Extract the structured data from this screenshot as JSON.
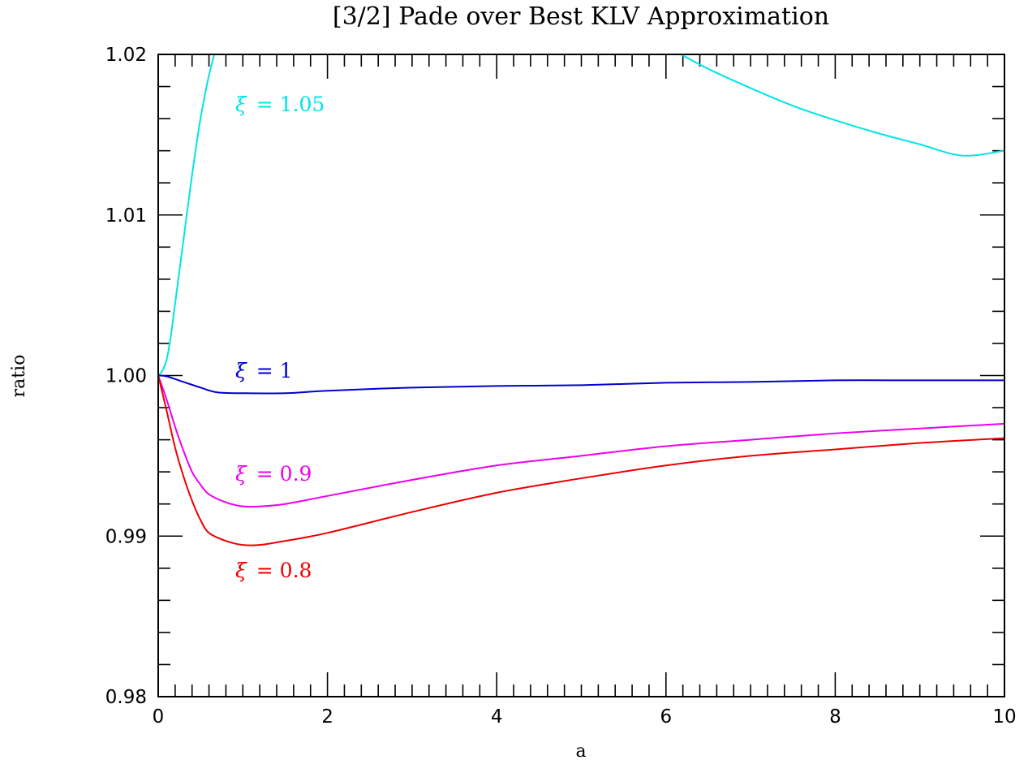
{
  "chart_data": {
    "type": "line",
    "title": "[3/2] Pade over Best KLV Approximation",
    "xlabel": "a",
    "ylabel": "ratio",
    "xlim": [
      0,
      10
    ],
    "ylim": [
      0.98,
      1.02
    ],
    "x_ticks": [
      "0",
      "2",
      "4",
      "6",
      "8",
      "10"
    ],
    "y_ticks": [
      "0.98",
      "0.99",
      "1.01",
      "1.02"
    ],
    "y_tick_1": "1.00",
    "grid": false,
    "series": [
      {
        "label_symbol": "ξ",
        "label_text": "= 1.05",
        "color": "#00e5e5",
        "points": [
          [
            0,
            1.0
          ],
          [
            0.05,
            1.0003
          ],
          [
            0.1,
            1.001
          ],
          [
            0.15,
            1.0025
          ],
          [
            0.2,
            1.0045
          ],
          [
            0.3,
            1.0085
          ],
          [
            0.4,
            1.0125
          ],
          [
            0.5,
            1.016
          ],
          [
            0.6,
            1.0187
          ],
          [
            0.7,
            1.0207
          ],
          [
            6.0,
            1.0205
          ],
          [
            6.5,
            1.0191
          ],
          [
            7.0,
            1.0179
          ],
          [
            7.5,
            1.0168
          ],
          [
            8.0,
            1.0159
          ],
          [
            8.5,
            1.0151
          ],
          [
            9.0,
            1.0144
          ],
          [
            9.5,
            1.0137
          ],
          [
            10.0,
            1.014
          ]
        ]
      },
      {
        "label_symbol": "ξ",
        "label_text": "= 1",
        "color": "#0000cc",
        "points": [
          [
            0,
            1.0
          ],
          [
            0.1,
            0.99995
          ],
          [
            0.3,
            0.9996
          ],
          [
            0.5,
            0.99925
          ],
          [
            0.7,
            0.99895
          ],
          [
            1.0,
            0.9989
          ],
          [
            1.5,
            0.9989
          ],
          [
            2.0,
            0.99905
          ],
          [
            3.0,
            0.99925
          ],
          [
            4.0,
            0.99935
          ],
          [
            5.0,
            0.9994
          ],
          [
            6.0,
            0.99955
          ],
          [
            7.0,
            0.9996
          ],
          [
            8.0,
            0.9997
          ],
          [
            9.0,
            0.9997
          ],
          [
            10.0,
            0.9997
          ]
        ]
      },
      {
        "label_symbol": "ξ",
        "label_text": "= 0.9",
        "color": "#ee00ee",
        "points": [
          [
            0,
            1.0
          ],
          [
            0.1,
            0.9985
          ],
          [
            0.2,
            0.9968
          ],
          [
            0.3,
            0.9953
          ],
          [
            0.4,
            0.994
          ],
          [
            0.5,
            0.9932
          ],
          [
            0.6,
            0.9926
          ],
          [
            0.8,
            0.9921
          ],
          [
            1.0,
            0.99185
          ],
          [
            1.2,
            0.99185
          ],
          [
            1.5,
            0.992
          ],
          [
            2.0,
            0.9925
          ],
          [
            3.0,
            0.9935
          ],
          [
            4.0,
            0.9944
          ],
          [
            5.0,
            0.995
          ],
          [
            6.0,
            0.9956
          ],
          [
            7.0,
            0.996
          ],
          [
            8.0,
            0.9964
          ],
          [
            9.0,
            0.9967
          ],
          [
            10.0,
            0.997
          ]
        ]
      },
      {
        "label_symbol": "ξ",
        "label_text": "= 0.8",
        "color": "#ee0000",
        "points": [
          [
            0,
            1.0
          ],
          [
            0.1,
            0.9978
          ],
          [
            0.2,
            0.9955
          ],
          [
            0.3,
            0.9937
          ],
          [
            0.4,
            0.9922
          ],
          [
            0.5,
            0.991
          ],
          [
            0.6,
            0.9902
          ],
          [
            0.8,
            0.9897
          ],
          [
            1.0,
            0.98945
          ],
          [
            1.2,
            0.98945
          ],
          [
            1.5,
            0.9897
          ],
          [
            2.0,
            0.9902
          ],
          [
            3.0,
            0.9915
          ],
          [
            4.0,
            0.9927
          ],
          [
            5.0,
            0.9936
          ],
          [
            6.0,
            0.9944
          ],
          [
            7.0,
            0.995
          ],
          [
            8.0,
            0.9954
          ],
          [
            9.0,
            0.9958
          ],
          [
            10.0,
            0.9961
          ]
        ]
      }
    ]
  }
}
